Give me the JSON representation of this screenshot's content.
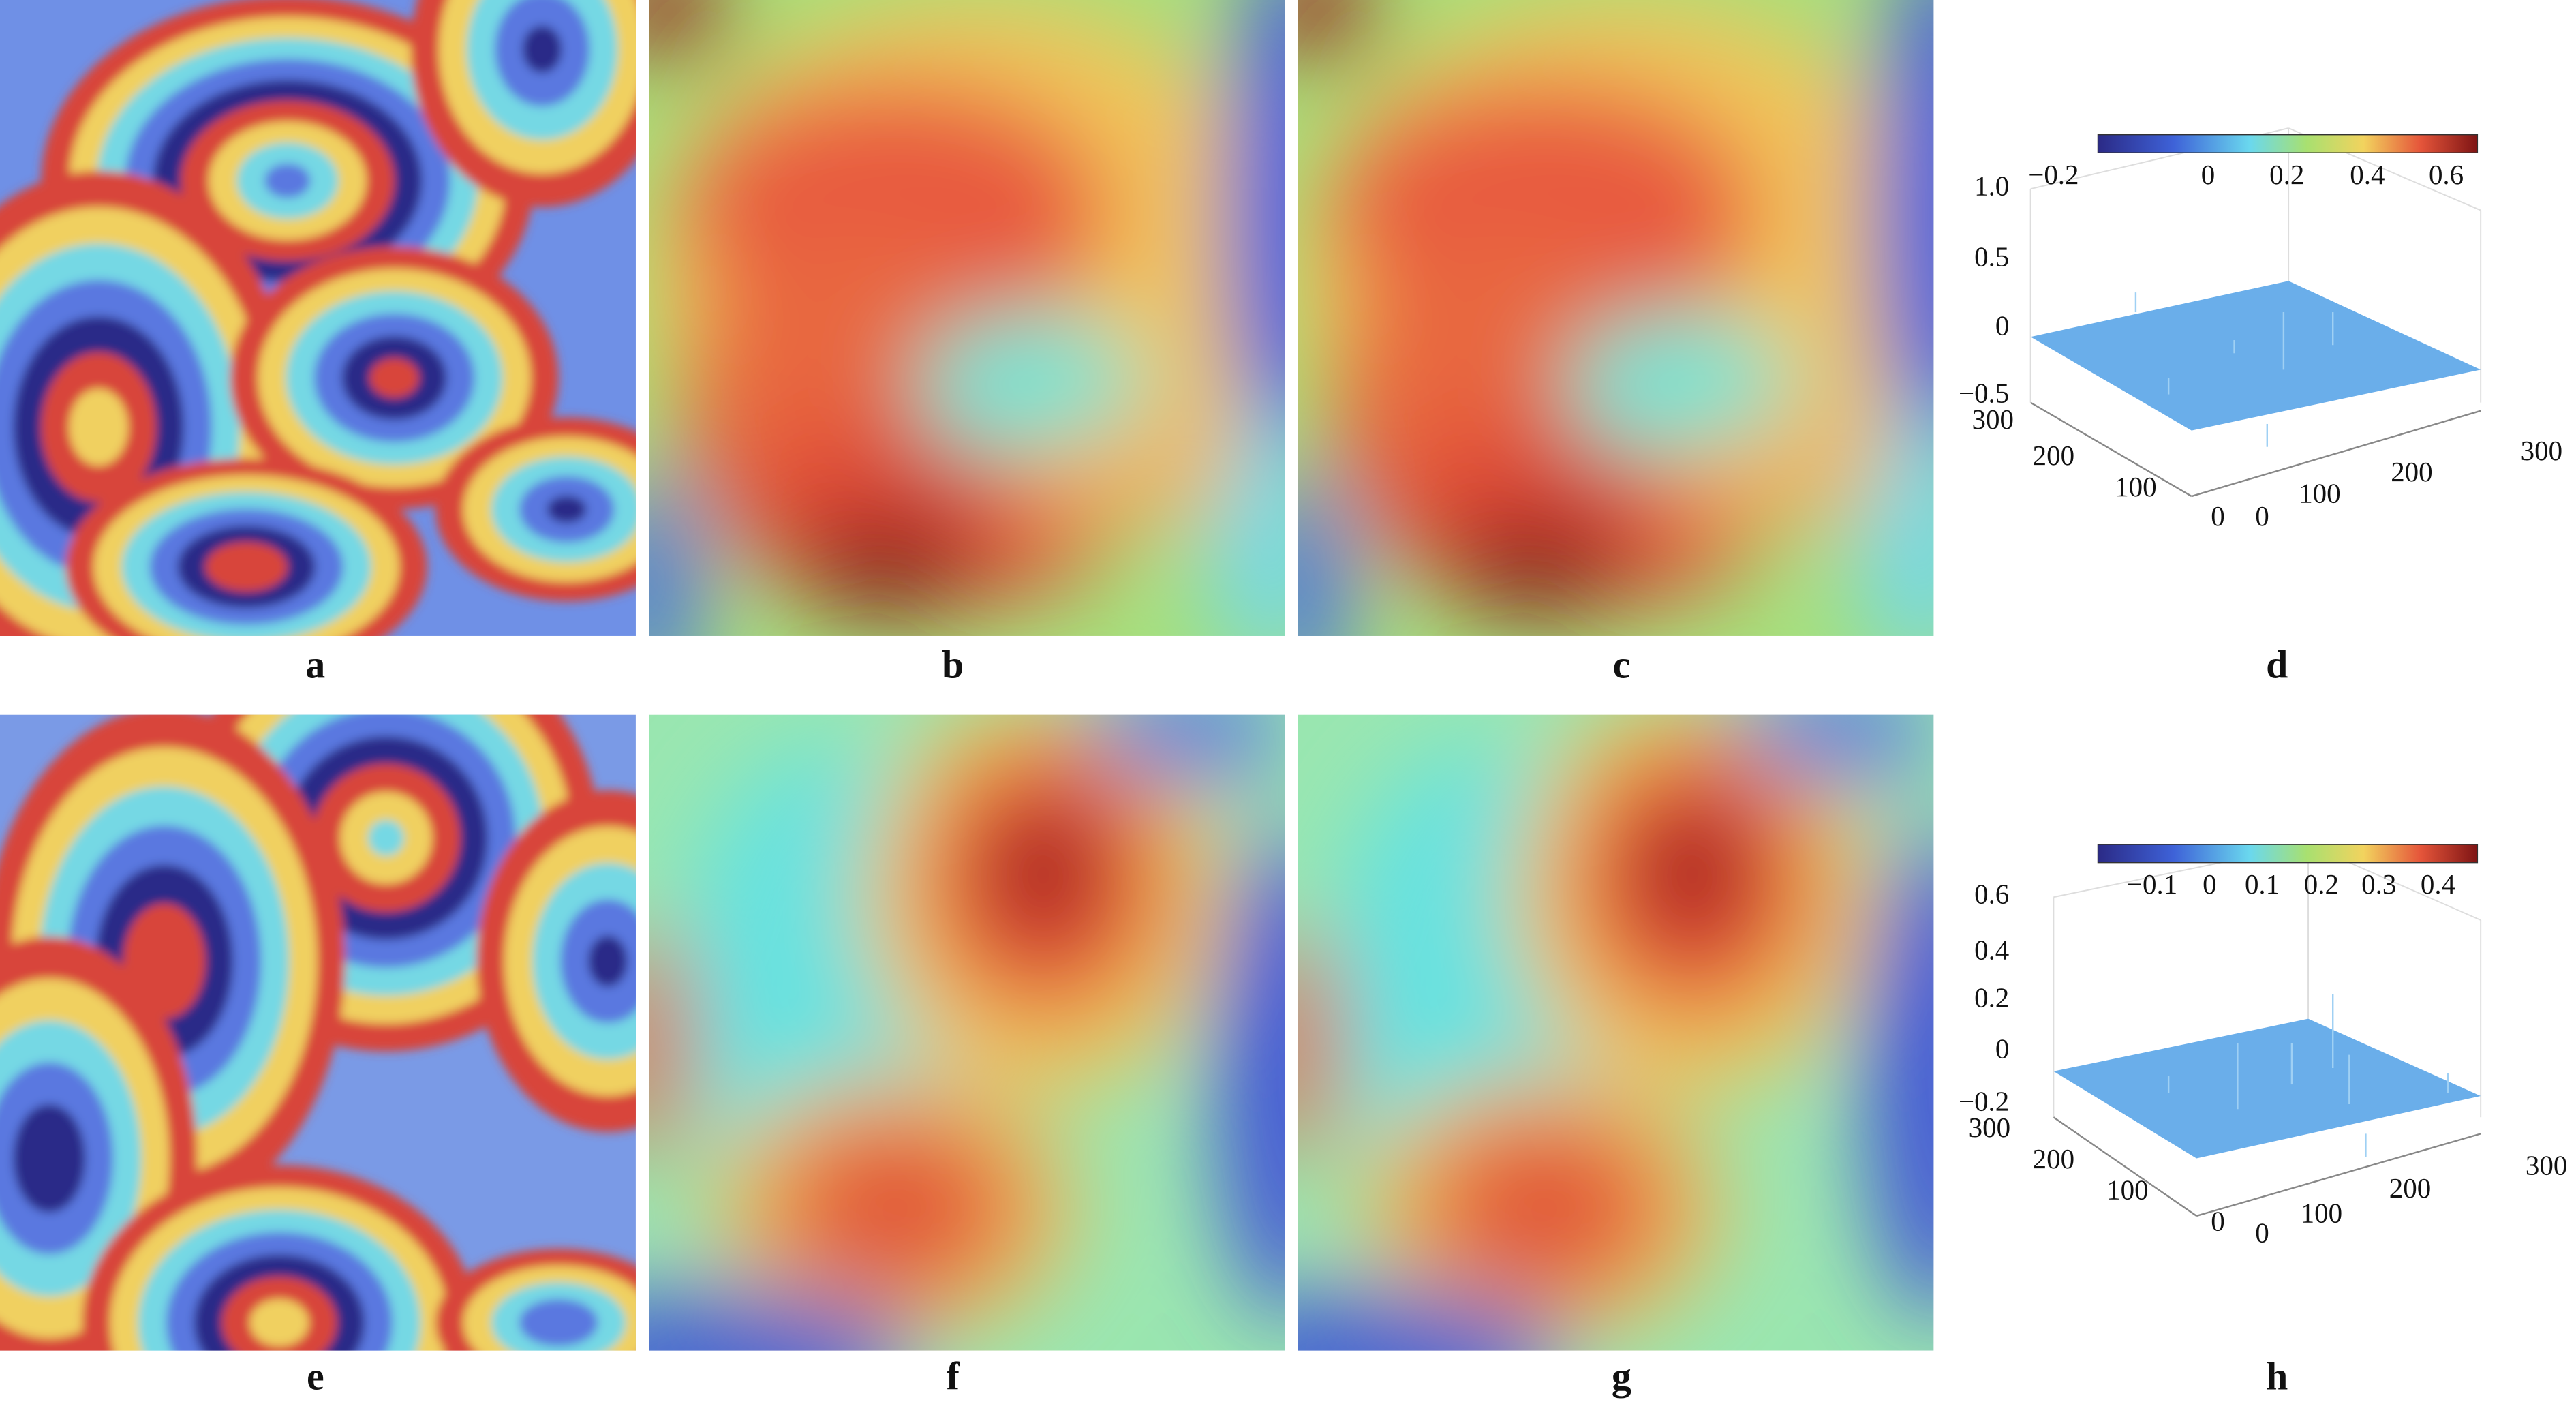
{
  "labels": [
    "a",
    "b",
    "c",
    "d",
    "e",
    "f",
    "g",
    "h"
  ],
  "plot_d": {
    "colorbar_ticks": [
      "−0.2",
      "0",
      "0.2",
      "0.4",
      "0.6"
    ],
    "z_ticks": [
      "1.0",
      "0.5",
      "0",
      "−0.5"
    ],
    "left_ticks": [
      "300",
      "200",
      "100",
      "0"
    ],
    "right_ticks": [
      "0",
      "100",
      "200",
      "300"
    ]
  },
  "plot_h": {
    "colorbar_ticks": [
      "−0.1",
      "0",
      "0.1",
      "0.2",
      "0.3",
      "0.4"
    ],
    "z_ticks": [
      "0.6",
      "0.4",
      "0.2",
      "0",
      "−0.2"
    ],
    "left_ticks": [
      "300",
      "200",
      "100",
      "0"
    ],
    "right_ticks": [
      "0",
      "100",
      "200",
      "300"
    ]
  }
}
